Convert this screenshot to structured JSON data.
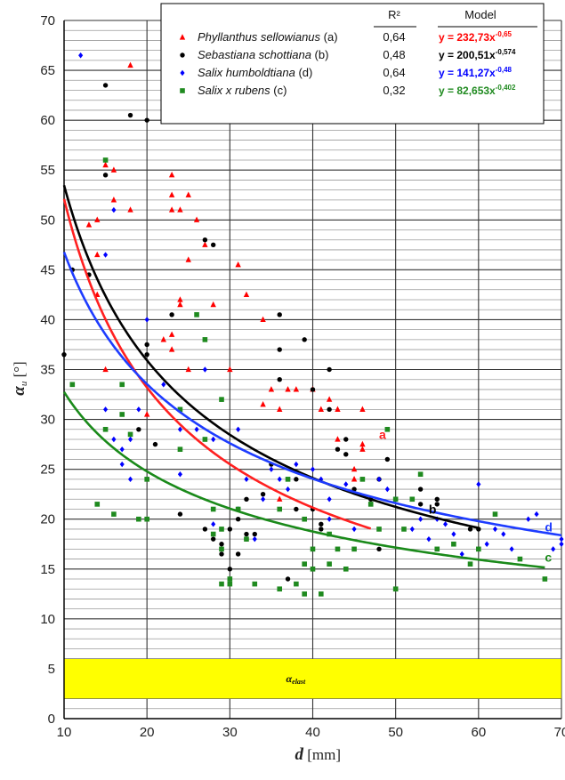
{
  "chart_data": {
    "type": "scatter",
    "xlabel_symbol": "d",
    "xlabel_unit": " [mm]",
    "ylabel_symbol": "α",
    "ylabel_sub": "u",
    "ylabel_unit": " [°]",
    "xlim": [
      10,
      70
    ],
    "ylim": [
      0,
      70
    ],
    "x_ticks": [
      10,
      20,
      30,
      40,
      50,
      60,
      70
    ],
    "y_ticks": [
      0,
      5,
      10,
      15,
      20,
      25,
      30,
      35,
      40,
      45,
      50,
      55,
      60,
      65,
      70
    ],
    "y_minor_step": 1,
    "grid": true,
    "legend_position": "top-right",
    "legend_header_r2": "R²",
    "legend_header_model": "Model",
    "band": {
      "label_symbol": "α",
      "label_sub": "elast",
      "y_from": 2,
      "y_to": 6,
      "color": "#ffff00"
    },
    "series": [
      {
        "id": "a",
        "species": "Phyllanthus sellowianus",
        "suffix": " (a)",
        "r2": "0,64",
        "model_base": "y = 232,73x",
        "model_exp": "-0,65",
        "coef": 232.73,
        "exp": -0.65,
        "fit_range": [
          10,
          47
        ],
        "curve_label": "a",
        "curve_label_x": 48,
        "curve_label_y": 28.5,
        "marker": "triangle",
        "color": "#ff0000",
        "curve_color": "#ff2020",
        "points": [
          [
            18,
            65.5
          ],
          [
            15,
            55.5
          ],
          [
            16,
            55
          ],
          [
            16,
            52
          ],
          [
            14,
            50
          ],
          [
            13,
            49.5
          ],
          [
            18,
            51
          ],
          [
            14,
            46.5
          ],
          [
            14,
            42.5
          ],
          [
            15,
            35
          ],
          [
            20,
            30.5
          ],
          [
            23,
            54.5
          ],
          [
            23,
            52.5
          ],
          [
            23,
            51
          ],
          [
            24,
            51
          ],
          [
            25,
            52.5
          ],
          [
            26,
            50
          ],
          [
            25,
            46
          ],
          [
            24,
            42
          ],
          [
            24,
            41.5
          ],
          [
            23,
            38.5
          ],
          [
            22,
            38
          ],
          [
            23,
            37
          ],
          [
            25,
            35
          ],
          [
            27,
            47.5
          ],
          [
            28,
            41.5
          ],
          [
            30,
            35
          ],
          [
            31,
            45.5
          ],
          [
            32,
            42.5
          ],
          [
            34,
            40
          ],
          [
            34,
            31.5
          ],
          [
            36,
            31
          ],
          [
            35,
            33
          ],
          [
            37,
            33
          ],
          [
            38,
            33
          ],
          [
            40,
            33
          ],
          [
            41,
            31
          ],
          [
            42,
            32
          ],
          [
            43,
            31
          ],
          [
            36,
            22
          ],
          [
            45,
            25
          ],
          [
            46,
            27
          ],
          [
            46,
            31
          ],
          [
            46,
            27.5
          ],
          [
            43,
            28
          ],
          [
            45,
            24
          ]
        ]
      },
      {
        "id": "b",
        "species": "Sebastiana schottiana",
        "suffix": " (b)",
        "r2": "0,48",
        "model_base": "y = 200,51x",
        "model_exp": "-0,574",
        "coef": 200.51,
        "exp": -0.574,
        "fit_range": [
          10,
          60
        ],
        "curve_label": "b",
        "curve_label_x": 54,
        "curve_label_y": 21,
        "marker": "circle",
        "color": "#000000",
        "curve_color": "#000000",
        "points": [
          [
            15,
            63.5
          ],
          [
            18,
            60.5
          ],
          [
            20,
            60
          ],
          [
            15,
            54.5
          ],
          [
            13,
            44.5
          ],
          [
            11,
            45
          ],
          [
            10,
            36.5
          ],
          [
            20,
            37.5
          ],
          [
            20,
            36.5
          ],
          [
            19,
            29
          ],
          [
            21,
            27.5
          ],
          [
            23,
            40.5
          ],
          [
            24,
            20.5
          ],
          [
            27,
            48
          ],
          [
            28,
            47.5
          ],
          [
            27,
            19
          ],
          [
            28,
            18
          ],
          [
            29,
            17.5
          ],
          [
            29,
            16.5
          ],
          [
            30,
            15
          ],
          [
            30,
            19
          ],
          [
            31,
            20
          ],
          [
            31,
            16.5
          ],
          [
            32,
            18.5
          ],
          [
            32,
            18
          ],
          [
            33,
            18.5
          ],
          [
            32,
            22
          ],
          [
            34,
            22.5
          ],
          [
            35,
            25.5
          ],
          [
            36,
            40.5
          ],
          [
            36,
            37
          ],
          [
            36,
            34
          ],
          [
            38,
            21
          ],
          [
            38,
            24
          ],
          [
            37,
            14
          ],
          [
            39,
            38
          ],
          [
            40,
            33
          ],
          [
            40,
            21
          ],
          [
            41,
            19
          ],
          [
            41,
            19.5
          ],
          [
            42,
            35
          ],
          [
            42,
            31
          ],
          [
            43,
            27
          ],
          [
            44,
            28
          ],
          [
            44,
            26.5
          ],
          [
            45,
            23
          ],
          [
            47,
            22
          ],
          [
            48,
            24
          ],
          [
            49,
            26
          ],
          [
            48,
            17
          ],
          [
            53,
            23
          ],
          [
            53,
            21.5
          ],
          [
            55,
            22
          ],
          [
            55,
            21.5
          ],
          [
            59,
            19
          ],
          [
            60,
            19
          ]
        ]
      },
      {
        "id": "d",
        "species": "Salix humboldtiana",
        "suffix": " (d)",
        "r2": "0,64",
        "model_base": "y = 141,27x",
        "model_exp": "-0,48",
        "coef": 141.27,
        "exp": -0.48,
        "fit_range": [
          10,
          70
        ],
        "curve_label": "d",
        "curve_label_x": 68,
        "curve_label_y": 19.2,
        "marker": "diamond",
        "color": "#0000ff",
        "curve_color": "#1e3cff",
        "points": [
          [
            12,
            66.5
          ],
          [
            15,
            46.5
          ],
          [
            16,
            51
          ],
          [
            20,
            40
          ],
          [
            18,
            28
          ],
          [
            16,
            28
          ],
          [
            17,
            25.5
          ],
          [
            17,
            27
          ],
          [
            18,
            24
          ],
          [
            15,
            31
          ],
          [
            19,
            31
          ],
          [
            22,
            33.5
          ],
          [
            24,
            29
          ],
          [
            24,
            24.5
          ],
          [
            26,
            29
          ],
          [
            27,
            35
          ],
          [
            28,
            28
          ],
          [
            28,
            19.5
          ],
          [
            31,
            29
          ],
          [
            31,
            21
          ],
          [
            32,
            24
          ],
          [
            33,
            18
          ],
          [
            34,
            22
          ],
          [
            35,
            25
          ],
          [
            36,
            24
          ],
          [
            37,
            23
          ],
          [
            38,
            25.5
          ],
          [
            40,
            25
          ],
          [
            41,
            24
          ],
          [
            42,
            20
          ],
          [
            42,
            22
          ],
          [
            44,
            23.5
          ],
          [
            45,
            19
          ],
          [
            48,
            24
          ],
          [
            49,
            23
          ],
          [
            50,
            22
          ],
          [
            52,
            19
          ],
          [
            53,
            20
          ],
          [
            54,
            18
          ],
          [
            55,
            20
          ],
          [
            56,
            19.5
          ],
          [
            57,
            18.5
          ],
          [
            58,
            16.5
          ],
          [
            60,
            23.5
          ],
          [
            61,
            17.5
          ],
          [
            62,
            19
          ],
          [
            63,
            18.5
          ],
          [
            64,
            17
          ],
          [
            66,
            20
          ],
          [
            67,
            20.5
          ],
          [
            69,
            17
          ],
          [
            70,
            17.5
          ],
          [
            70,
            18
          ],
          [
            71,
            18
          ]
        ]
      },
      {
        "id": "c",
        "species": "Salix x rubens",
        "suffix": " (c)",
        "r2": "0,32",
        "model_base": "y = 82,653x",
        "model_exp": "-0,402",
        "coef": 82.653,
        "exp": -0.402,
        "fit_range": [
          10,
          68
        ],
        "curve_label": "c",
        "curve_label_x": 68,
        "curve_label_y": 16.2,
        "marker": "square",
        "color": "#1f8a1f",
        "curve_color": "#1a8a1a",
        "points": [
          [
            15,
            56
          ],
          [
            11,
            33.5
          ],
          [
            17,
            33.5
          ],
          [
            17,
            30.5
          ],
          [
            14,
            21.5
          ],
          [
            16,
            20.5
          ],
          [
            15,
            29
          ],
          [
            18,
            28.5
          ],
          [
            19,
            20
          ],
          [
            20,
            20
          ],
          [
            20,
            24
          ],
          [
            24,
            31
          ],
          [
            24,
            27
          ],
          [
            26,
            40.5
          ],
          [
            27,
            38
          ],
          [
            27,
            28
          ],
          [
            28,
            21
          ],
          [
            28,
            18.5
          ],
          [
            29,
            17
          ],
          [
            29,
            19
          ],
          [
            30,
            14
          ],
          [
            30,
            13.5
          ],
          [
            29,
            13.5
          ],
          [
            29,
            32
          ],
          [
            31,
            21
          ],
          [
            32,
            18
          ],
          [
            33,
            13.5
          ],
          [
            36,
            13
          ],
          [
            36,
            21
          ],
          [
            37,
            24
          ],
          [
            38,
            13.5
          ],
          [
            39,
            20
          ],
          [
            39,
            15.5
          ],
          [
            39,
            12.5
          ],
          [
            40,
            17
          ],
          [
            40,
            15
          ],
          [
            41,
            12.5
          ],
          [
            42,
            18.5
          ],
          [
            42,
            15.5
          ],
          [
            43,
            17
          ],
          [
            44,
            15
          ],
          [
            45,
            17
          ],
          [
            46,
            24
          ],
          [
            47,
            21.5
          ],
          [
            48,
            19
          ],
          [
            49,
            29
          ],
          [
            50,
            22
          ],
          [
            50,
            13
          ],
          [
            51,
            19
          ],
          [
            52,
            22
          ],
          [
            53,
            24.5
          ],
          [
            55,
            17
          ],
          [
            57,
            17.5
          ],
          [
            59,
            15.5
          ],
          [
            60,
            17
          ],
          [
            62,
            20.5
          ],
          [
            65,
            16
          ],
          [
            68,
            14
          ]
        ]
      }
    ]
  }
}
